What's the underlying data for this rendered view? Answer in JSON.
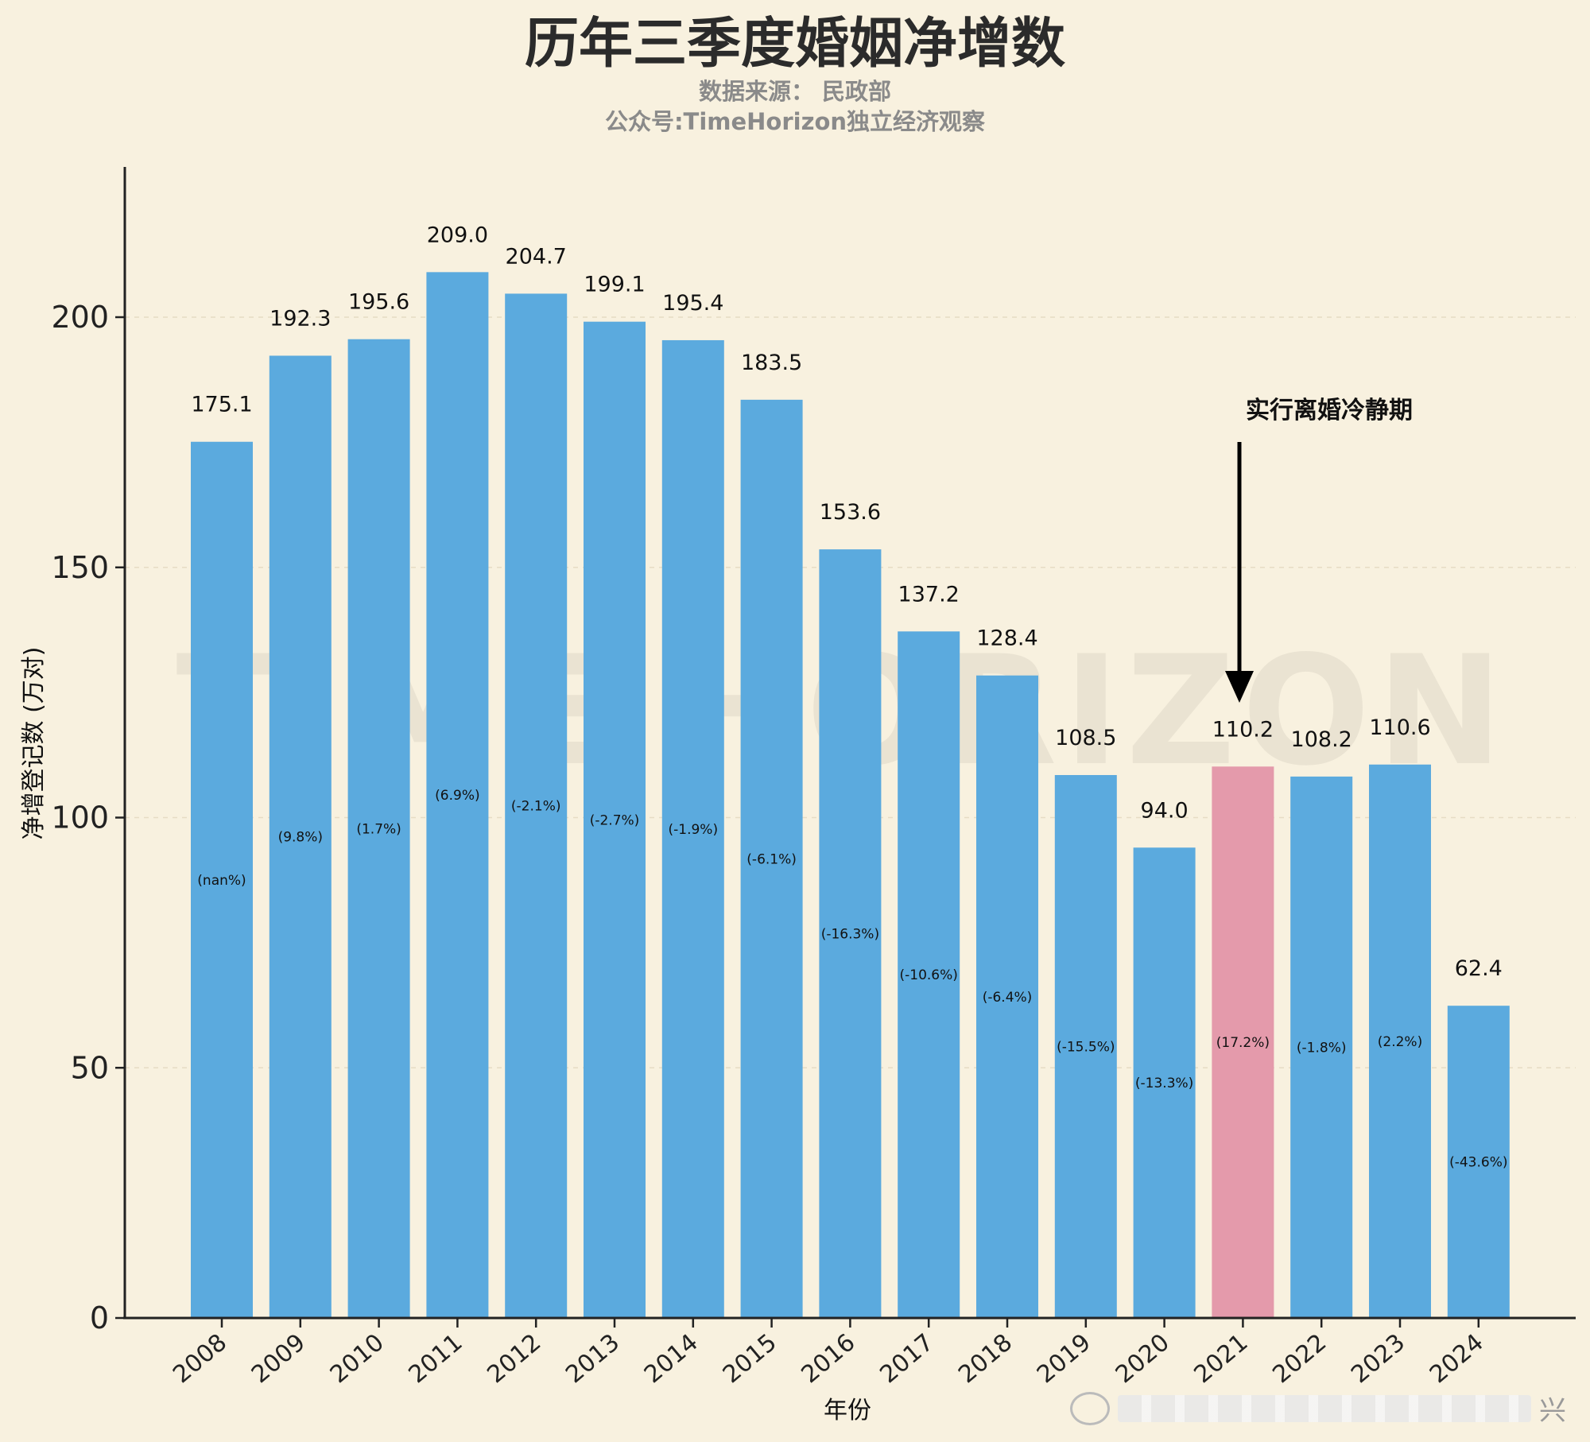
{
  "chart_data": {
    "type": "bar",
    "title": "历年三季度婚姻净增数",
    "subtitle_lines": [
      "数据来源： 民政部",
      "公众号:TimeHorizon独立经济观察"
    ],
    "xlabel": "年份",
    "ylabel": "净增登记数 (万对)",
    "ylim": [
      0,
      230
    ],
    "yticks": [
      0,
      50,
      100,
      150,
      200
    ],
    "categories": [
      "2008",
      "2009",
      "2010",
      "2011",
      "2012",
      "2013",
      "2014",
      "2015",
      "2016",
      "2017",
      "2018",
      "2019",
      "2020",
      "2021",
      "2022",
      "2023",
      "2024"
    ],
    "values": [
      175.1,
      192.3,
      195.6,
      209.0,
      204.7,
      199.1,
      195.4,
      183.5,
      153.6,
      137.2,
      128.4,
      108.5,
      94.0,
      110.2,
      108.2,
      110.6,
      62.4
    ],
    "value_labels": [
      "175.1",
      "192.3",
      "195.6",
      "209.0",
      "204.7",
      "199.1",
      "195.4",
      "183.5",
      "153.6",
      "137.2",
      "128.4",
      "108.5",
      "94.0",
      "110.2",
      "108.2",
      "110.6",
      "62.4"
    ],
    "pct_labels": [
      "(nan%)",
      "(9.8%)",
      "(1.7%)",
      "(6.9%)",
      "(-2.1%)",
      "(-2.7%)",
      "(-1.9%)",
      "(-6.1%)",
      "(-16.3%)",
      "(-10.6%)",
      "(-6.4%)",
      "(-15.5%)",
      "(-13.3%)",
      "(17.2%)",
      "(-1.8%)",
      "(2.2%)",
      "(-43.6%)"
    ],
    "colors": {
      "bar": "#5baade",
      "highlight_bar": "#e49aab",
      "background": "#f8f1df",
      "axis": "#222222"
    },
    "highlight_index": 13,
    "annotation": {
      "text": "实行离婚冷静期",
      "category": "2021"
    },
    "watermark": "TIME HORIZON"
  },
  "footer_mark": "兴"
}
